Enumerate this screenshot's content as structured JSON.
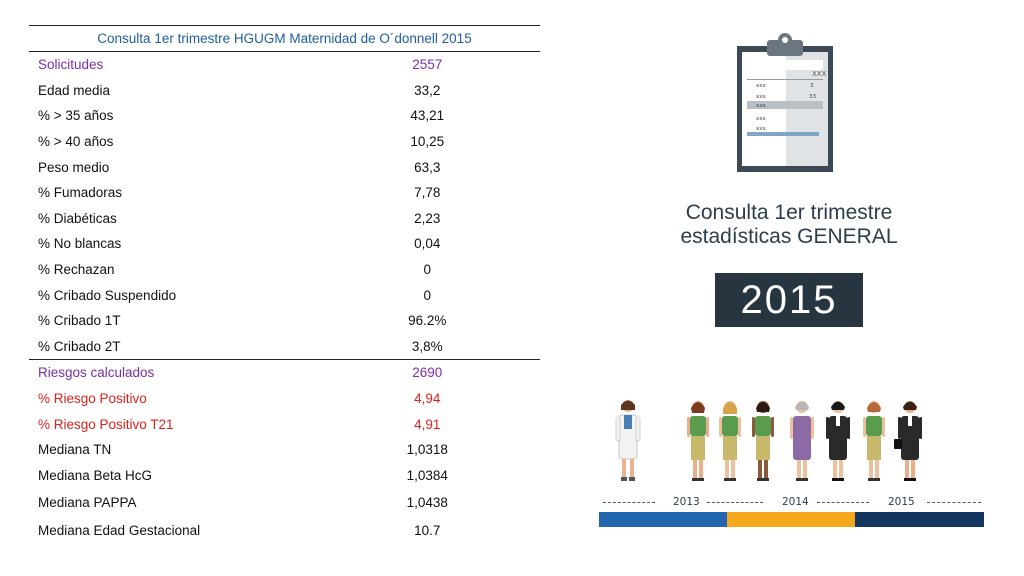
{
  "table": {
    "caption": "Consulta 1er trimestre HGUGM Maternidad de O´donnell 2015",
    "rows": [
      {
        "label": "Solicitudes",
        "value": "2557"
      },
      {
        "label": "Edad media",
        "value": "33,2"
      },
      {
        "label": "% > 35 años",
        "value": "43,21"
      },
      {
        "label": "% > 40 años",
        "value": "10,25"
      },
      {
        "label": "Peso medio",
        "value": "63,3"
      },
      {
        "label": "% Fumadoras",
        "value": "7,78"
      },
      {
        "label": "% Diabéticas",
        "value": "2,23"
      },
      {
        "label": "% No blancas",
        "value": "0,04"
      },
      {
        "label": "% Rechazan",
        "value": "0"
      },
      {
        "label": "% Cribado Suspendido",
        "value": "0"
      },
      {
        "label": "% Cribado 1T",
        "value": "96.2%"
      },
      {
        "label": "% Cribado 2T",
        "value": "3,8%"
      },
      {
        "label": "Riesgos calculados",
        "value": "2690"
      },
      {
        "label": "% Riesgo Positivo",
        "value": "4,94"
      },
      {
        "label": "% Riesgo Positivo T21",
        "value": "4,91"
      },
      {
        "label": "Mediana TN",
        "value": "1,0318"
      },
      {
        "label": "Mediana Beta HcG",
        "value": "1,0384"
      },
      {
        "label": "Mediana PAPPA",
        "value": "1,0438"
      },
      {
        "label": "Mediana Edad Gestacional",
        "value": "10.7"
      }
    ]
  },
  "clipboard": {
    "header": "XXX",
    "lines": [
      "xxx",
      "xxx",
      "xxx",
      "xxx",
      "xxx"
    ],
    "side_values": [
      "3",
      "33"
    ]
  },
  "heading": {
    "line1": "Consulta 1er trimestre",
    "line2": "estadísticas GENERAL"
  },
  "year": "2015",
  "timeline": {
    "labels": [
      "2013",
      "2014",
      "2015"
    ],
    "colors": [
      "#2266b0",
      "#f5a81c",
      "#14365e"
    ]
  },
  "icons": {
    "clipboard": "clipboard-icon",
    "people": [
      "doctor-icon",
      "woman-icon",
      "woman-icon",
      "woman-icon",
      "woman-icon",
      "businesswoman-icon",
      "woman-icon",
      "businesswoman-icon"
    ]
  }
}
